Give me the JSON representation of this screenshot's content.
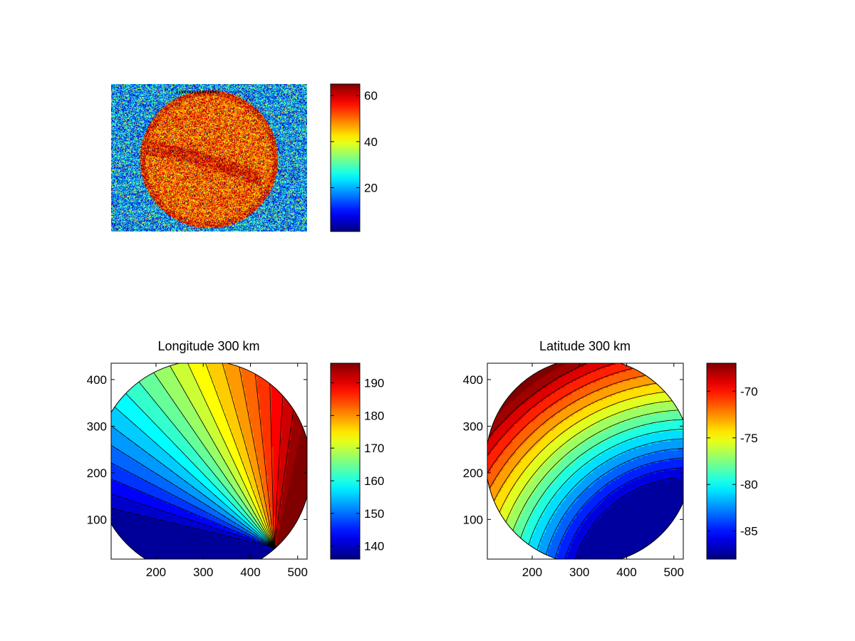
{
  "chart_data": [
    {
      "type": "heatmap",
      "title": "",
      "xlabel": "",
      "ylabel": "",
      "colorbar": {
        "colormap": "jet",
        "range": [
          1,
          65
        ],
        "ticks": [
          20,
          40,
          60
        ]
      },
      "content": "noisy disk image of aurora oval",
      "xticks": [],
      "yticks": []
    },
    {
      "type": "heatmap",
      "title": "Longitude 300 km",
      "xlabel": "",
      "ylabel": "",
      "xlim": [
        105,
        520
      ],
      "ylim": [
        15,
        435
      ],
      "xticks": [
        200,
        300,
        400,
        500
      ],
      "yticks": [
        100,
        200,
        300,
        400
      ],
      "contour_levels": 20,
      "colorbar": {
        "colormap": "jet",
        "range": [
          136,
          196
        ],
        "ticks": [
          140,
          150,
          160,
          170,
          180,
          190
        ]
      }
    },
    {
      "type": "heatmap",
      "title": "Latitude 300 km",
      "xlabel": "",
      "ylabel": "",
      "xlim": [
        105,
        520
      ],
      "ylim": [
        15,
        435
      ],
      "xticks": [
        200,
        300,
        400,
        500
      ],
      "yticks": [
        100,
        200,
        300,
        400
      ],
      "contour_levels": 16,
      "colorbar": {
        "colormap": "jet",
        "range": [
          -88,
          -67
        ],
        "ticks": [
          -85,
          -80,
          -75,
          -70
        ]
      }
    }
  ]
}
